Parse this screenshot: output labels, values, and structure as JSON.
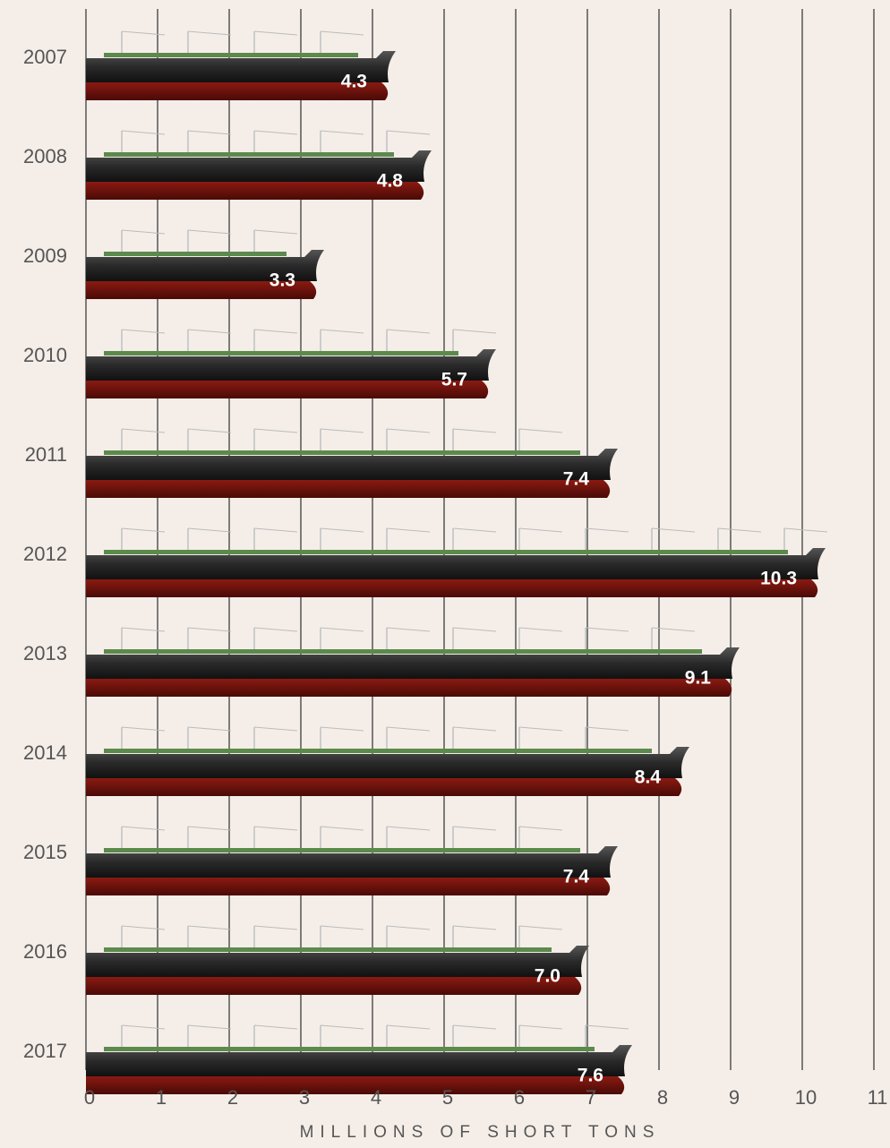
{
  "chart_data": {
    "type": "bar",
    "orientation": "horizontal",
    "categories": [
      "2007",
      "2008",
      "2009",
      "2010",
      "2011",
      "2012",
      "2013",
      "2014",
      "2015",
      "2016",
      "2017"
    ],
    "values": [
      4.3,
      4.8,
      3.3,
      5.7,
      7.4,
      10.3,
      9.1,
      8.4,
      7.4,
      7.0,
      7.6
    ],
    "value_labels": [
      "4.3",
      "4.8",
      "3.3",
      "5.7",
      "7.4",
      "10.3",
      "9.1",
      "8.4",
      "7.4",
      "7.0",
      "7.6"
    ],
    "xlim": [
      0,
      11
    ],
    "xticks": [
      0,
      1,
      2,
      3,
      4,
      5,
      6,
      7,
      8,
      9,
      10,
      11
    ],
    "xlabel": "MILLIONS OF SHORT TONS",
    "grid": true,
    "color": "#2b2b2b"
  }
}
